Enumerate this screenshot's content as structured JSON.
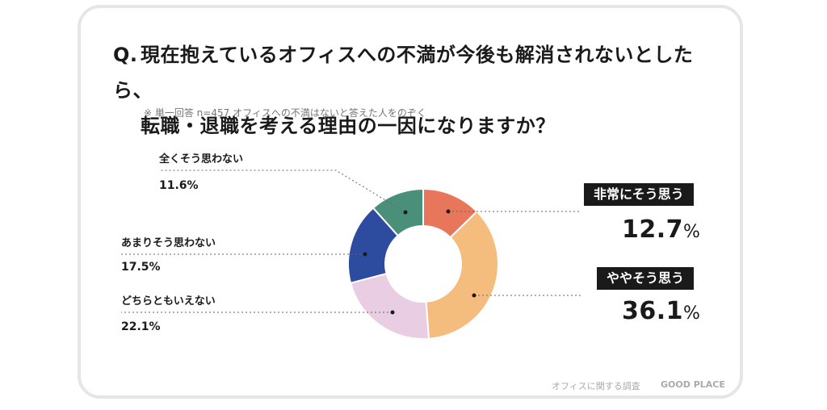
{
  "question": {
    "prefix": "Q.",
    "line1": "現在抱えているオフィスへの不満が今後も解消されないとしたら、",
    "line2": "転職・退職を考える理由の一因になりますか？"
  },
  "note": "※ 単一回答 n=457 オフィスへの不満はないと答えた人をのぞく",
  "footer": {
    "survey": "オフィスに関する調査",
    "brand": "GOOD PLACE"
  },
  "labels": {
    "s1": {
      "name": "非常にそう思う",
      "pct": "12.7"
    },
    "s2": {
      "name": "ややそう思う",
      "pct": "36.1"
    },
    "s3": {
      "name": "どちらともいえない",
      "pct": "22.1%"
    },
    "s4": {
      "name": "あまりそう思わない",
      "pct": "17.5%"
    },
    "s5": {
      "name": "全くそう思わない",
      "pct": "11.6%"
    },
    "pct_symbol": "%"
  },
  "chart_data": {
    "type": "pie",
    "variant": "donut",
    "categories": [
      "非常にそう思う",
      "ややそう思う",
      "どちらともいえない",
      "あまりそう思わない",
      "全くそう思わない"
    ],
    "values": [
      12.7,
      36.1,
      22.1,
      17.5,
      11.6
    ],
    "colors": [
      "#e8765a",
      "#f5bd7d",
      "#e8cde3",
      "#2d4b9f",
      "#4a8f7a"
    ],
    "start": "12 o'clock, clockwise"
  }
}
